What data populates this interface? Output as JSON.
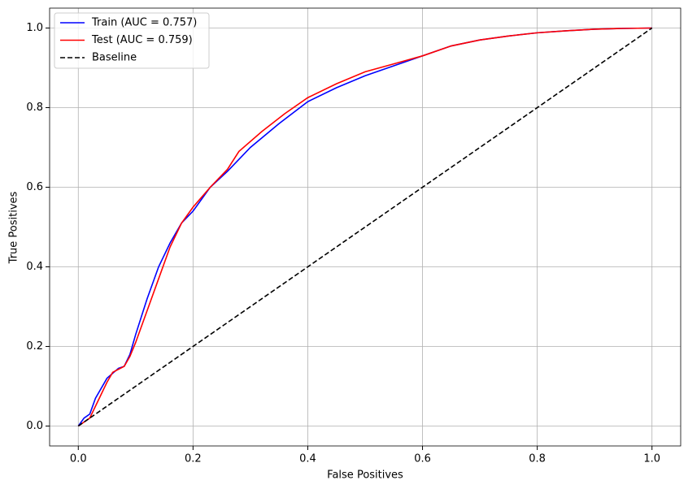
{
  "chart_data": {
    "type": "line",
    "xlabel": "False Positives",
    "ylabel": "True Positives",
    "xlim": [
      -0.05,
      1.05
    ],
    "ylim": [
      -0.05,
      1.05
    ],
    "xticks": [
      {
        "value": 0,
        "label": "0.0"
      },
      {
        "value": 0.2,
        "label": "0.2"
      },
      {
        "value": 0.4,
        "label": "0.4"
      },
      {
        "value": 0.6,
        "label": "0.6"
      },
      {
        "value": 0.8,
        "label": "0.8"
      },
      {
        "value": 1,
        "label": "1.0"
      }
    ],
    "yticks": [
      {
        "value": 0,
        "label": "0.0"
      },
      {
        "value": 0.2,
        "label": "0.2"
      },
      {
        "value": 0.4,
        "label": "0.4"
      },
      {
        "value": 0.6,
        "label": "0.6"
      },
      {
        "value": 0.8,
        "label": "0.8"
      },
      {
        "value": 1,
        "label": "1.0"
      }
    ],
    "grid": true,
    "legend": "upper-left",
    "series": [
      {
        "name": "Train (AUC = 0.757)",
        "color": "#0000ff",
        "linestyle": "solid",
        "x": [
          0,
          0.01,
          0.02,
          0.03,
          0.05,
          0.07,
          0.08,
          0.09,
          0.1,
          0.12,
          0.14,
          0.16,
          0.18,
          0.2,
          0.23,
          0.26,
          0.3,
          0.35,
          0.4,
          0.45,
          0.5,
          0.55,
          0.6,
          0.65,
          0.7,
          0.75,
          0.8,
          0.85,
          0.9,
          0.95,
          1.0
        ],
        "values": [
          0,
          0.02,
          0.03,
          0.07,
          0.12,
          0.145,
          0.15,
          0.18,
          0.23,
          0.32,
          0.4,
          0.46,
          0.51,
          0.54,
          0.6,
          0.64,
          0.7,
          0.76,
          0.815,
          0.85,
          0.88,
          0.905,
          0.93,
          0.955,
          0.97,
          0.98,
          0.988,
          0.993,
          0.997,
          0.999,
          1.0
        ]
      },
      {
        "name": "Test (AUC = 0.759)",
        "color": "#ff0000",
        "linestyle": "solid",
        "x": [
          0,
          0.02,
          0.03,
          0.05,
          0.06,
          0.08,
          0.09,
          0.1,
          0.12,
          0.14,
          0.16,
          0.18,
          0.2,
          0.23,
          0.26,
          0.28,
          0.32,
          0.36,
          0.4,
          0.45,
          0.5,
          0.55,
          0.6,
          0.65,
          0.7,
          0.75,
          0.8,
          0.85,
          0.9,
          0.95,
          1.0
        ],
        "values": [
          0,
          0.02,
          0.05,
          0.11,
          0.135,
          0.15,
          0.175,
          0.21,
          0.29,
          0.37,
          0.45,
          0.51,
          0.55,
          0.6,
          0.645,
          0.69,
          0.74,
          0.785,
          0.825,
          0.86,
          0.89,
          0.91,
          0.93,
          0.955,
          0.97,
          0.98,
          0.988,
          0.993,
          0.997,
          0.999,
          1.0
        ]
      },
      {
        "name": "Baseline",
        "color": "#000000",
        "linestyle": "dashed",
        "x": [
          0,
          1
        ],
        "values": [
          0,
          1
        ]
      }
    ]
  }
}
